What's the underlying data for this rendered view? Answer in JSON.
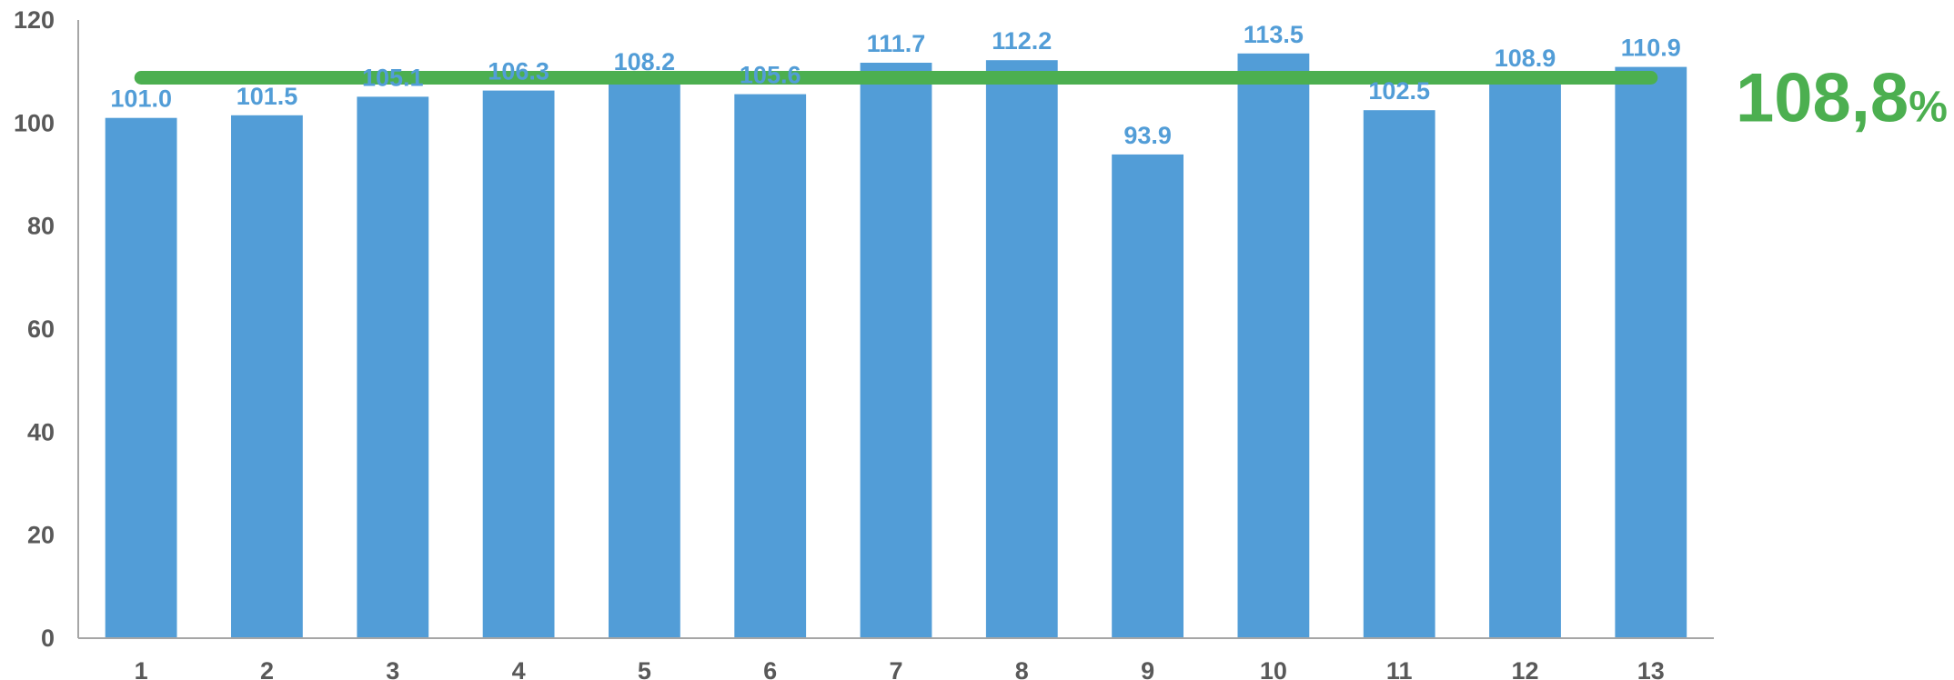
{
  "chart_data": {
    "type": "bar",
    "categories": [
      "1",
      "2",
      "3",
      "4",
      "5",
      "6",
      "7",
      "8",
      "9",
      "10",
      "11",
      "12",
      "13"
    ],
    "values": [
      101.0,
      101.5,
      105.1,
      106.3,
      108.2,
      105.6,
      111.7,
      112.2,
      93.9,
      113.5,
      102.5,
      108.9,
      110.9
    ],
    "data_labels": [
      "101.0",
      "101.5",
      "105.1",
      "106.3",
      "108.2",
      "105.6",
      "111.7",
      "112.2",
      "93.9",
      "113.5",
      "102.5",
      "108.9",
      "110.9"
    ],
    "ylim": [
      0,
      120
    ],
    "yticks": [
      0,
      20,
      40,
      60,
      80,
      100,
      120
    ],
    "ytick_labels": [
      "0",
      "20",
      "40",
      "60",
      "80",
      "100",
      "120"
    ],
    "title": "",
    "xlabel": "",
    "ylabel": "",
    "grid": false,
    "legend": "none",
    "reference_line": {
      "value": 108.8
    },
    "annotation": {
      "number": "108,8",
      "unit": "%"
    },
    "colors": {
      "bar": "#529DD7",
      "label": "#529DD7",
      "reference": "#4CAF50",
      "axis": "#A6A6A6",
      "tick_text": "#595959"
    }
  }
}
